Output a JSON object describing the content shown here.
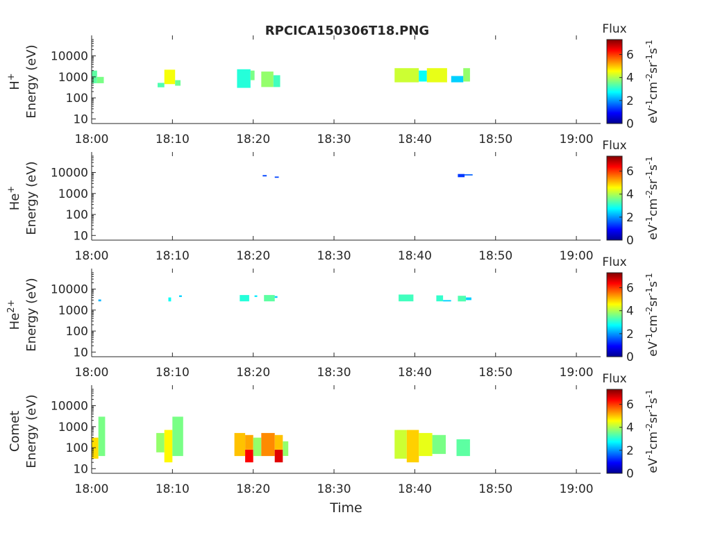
{
  "title": "RPCICA150306T18.PNG",
  "colorbar": {
    "label": "Flux",
    "ticks": [
      "0",
      "2",
      "4",
      "6"
    ],
    "range": [
      0,
      7.3
    ],
    "colormap": "jet"
  },
  "chart_data": [
    {
      "type": "heatmap",
      "name": "H+",
      "ylabel_species": "H",
      "ylabel_charge": "+",
      "ylabel_units": "Energy (eV)",
      "yscale": "log",
      "ylim": [
        6,
        60000
      ],
      "yticks": [
        "10",
        "100",
        "1000",
        "10000"
      ],
      "xlim": [
        "18:00",
        "19:03"
      ],
      "xticks": [
        "18:00",
        "18:10",
        "18:20",
        "18:30",
        "18:40",
        "18:50",
        "19:00"
      ],
      "blocks": [
        {
          "t0": "18:00:00",
          "t1": "18:00:40",
          "e0": 500,
          "e1": 2000,
          "flux": 3.4
        },
        {
          "t0": "18:00:40",
          "t1": "18:01:30",
          "e0": 500,
          "e1": 1000,
          "flux": 3.6
        },
        {
          "t0": "18:08:10",
          "t1": "18:09:00",
          "e0": 320,
          "e1": 520,
          "flux": 3.3
        },
        {
          "t0": "18:09:00",
          "t1": "18:10:20",
          "e0": 450,
          "e1": 2200,
          "flux": 4.5
        },
        {
          "t0": "18:10:20",
          "t1": "18:11:00",
          "e0": 380,
          "e1": 700,
          "flux": 3.5
        },
        {
          "t0": "18:18:00",
          "t1": "18:19:40",
          "e0": 300,
          "e1": 2300,
          "flux": 3.0
        },
        {
          "t0": "18:19:40",
          "t1": "18:20:10",
          "e0": 700,
          "e1": 2000,
          "flux": 3.6
        },
        {
          "t0": "18:21:00",
          "t1": "18:22:30",
          "e0": 330,
          "e1": 1800,
          "flux": 3.8
        },
        {
          "t0": "18:22:30",
          "t1": "18:23:20",
          "e0": 330,
          "e1": 1200,
          "flux": 3.2
        },
        {
          "t0": "18:37:30",
          "t1": "18:40:30",
          "e0": 550,
          "e1": 2600,
          "flux": 4.2
        },
        {
          "t0": "18:40:30",
          "t1": "18:41:30",
          "e0": 600,
          "e1": 2000,
          "flux": 2.8
        },
        {
          "t0": "18:41:30",
          "t1": "18:44:00",
          "e0": 550,
          "e1": 2600,
          "flux": 4.4
        },
        {
          "t0": "18:44:30",
          "t1": "18:46:00",
          "e0": 550,
          "e1": 1100,
          "flux": 2.4
        },
        {
          "t0": "18:46:00",
          "t1": "18:46:50",
          "e0": 600,
          "e1": 2600,
          "flux": 3.8
        }
      ]
    },
    {
      "type": "heatmap",
      "name": "He+",
      "ylabel_species": "He",
      "ylabel_charge": "+",
      "ylabel_units": "Energy (eV)",
      "yscale": "log",
      "ylim": [
        6,
        60000
      ],
      "yticks": [
        "10",
        "100",
        "1000",
        "10000"
      ],
      "xlim": [
        "18:00",
        "19:03"
      ],
      "xticks": [
        "18:00",
        "18:10",
        "18:20",
        "18:30",
        "18:40",
        "18:50",
        "19:00"
      ],
      "blocks": [
        {
          "t0": "18:21:10",
          "t1": "18:21:40",
          "e0": 6500,
          "e1": 7500,
          "flux": 1.4
        },
        {
          "t0": "18:22:40",
          "t1": "18:23:10",
          "e0": 5600,
          "e1": 6400,
          "flux": 1.4
        },
        {
          "t0": "18:45:20",
          "t1": "18:46:10",
          "e0": 6000,
          "e1": 8500,
          "flux": 1.3
        },
        {
          "t0": "18:46:10",
          "t1": "18:47:10",
          "e0": 7200,
          "e1": 8200,
          "flux": 1.6
        }
      ]
    },
    {
      "type": "heatmap",
      "name": "He2+",
      "ylabel_species": "He",
      "ylabel_charge": "2+",
      "ylabel_units": "Energy (eV)",
      "yscale": "log",
      "ylim": [
        6,
        60000
      ],
      "yticks": [
        "10",
        "100",
        "1000",
        "10000"
      ],
      "xlim": [
        "18:00",
        "19:03"
      ],
      "xticks": [
        "18:00",
        "18:10",
        "18:20",
        "18:30",
        "18:40",
        "18:50",
        "19:00"
      ],
      "blocks": [
        {
          "t0": "18:00:50",
          "t1": "18:01:10",
          "e0": 2600,
          "e1": 3200,
          "flux": 2.2
        },
        {
          "t0": "18:09:30",
          "t1": "18:09:50",
          "e0": 2600,
          "e1": 4000,
          "flux": 2.8
        },
        {
          "t0": "18:10:50",
          "t1": "18:11:10",
          "e0": 4200,
          "e1": 5000,
          "flux": 2.4
        },
        {
          "t0": "18:18:20",
          "t1": "18:19:30",
          "e0": 2600,
          "e1": 5200,
          "flux": 3.0
        },
        {
          "t0": "18:20:10",
          "t1": "18:20:30",
          "e0": 4200,
          "e1": 5000,
          "flux": 2.6
        },
        {
          "t0": "18:21:20",
          "t1": "18:22:40",
          "e0": 2600,
          "e1": 5200,
          "flux": 3.4
        },
        {
          "t0": "18:22:40",
          "t1": "18:23:00",
          "e0": 3800,
          "e1": 4600,
          "flux": 2.4
        },
        {
          "t0": "18:38:00",
          "t1": "18:39:50",
          "e0": 2600,
          "e1": 5500,
          "flux": 3.2
        },
        {
          "t0": "18:42:40",
          "t1": "18:43:30",
          "e0": 2600,
          "e1": 5000,
          "flux": 3.1
        },
        {
          "t0": "18:43:30",
          "t1": "18:44:30",
          "e0": 2600,
          "e1": 3000,
          "flux": 2.4
        },
        {
          "t0": "18:45:20",
          "t1": "18:46:20",
          "e0": 2600,
          "e1": 4800,
          "flux": 3.3
        },
        {
          "t0": "18:46:20",
          "t1": "18:47:00",
          "e0": 3000,
          "e1": 4000,
          "flux": 2.4
        }
      ]
    },
    {
      "type": "heatmap",
      "name": "Comet",
      "ylabel_species": "Comet",
      "ylabel_charge": "",
      "ylabel_units": "Energy (eV)",
      "yscale": "log",
      "ylim": [
        6,
        60000
      ],
      "yticks": [
        "10",
        "100",
        "1000",
        "10000"
      ],
      "xlim": [
        "18:00",
        "19:03"
      ],
      "xticks": [
        "18:00",
        "18:10",
        "18:20",
        "18:30",
        "18:40",
        "18:50",
        "19:00"
      ],
      "xlabel": "Time",
      "blocks": [
        {
          "t0": "18:00:00",
          "t1": "18:00:50",
          "e0": 30,
          "e1": 300,
          "flux": 4.8
        },
        {
          "t0": "18:00:50",
          "t1": "18:01:40",
          "e0": 40,
          "e1": 3000,
          "flux": 3.6
        },
        {
          "t0": "18:08:00",
          "t1": "18:09:00",
          "e0": 60,
          "e1": 500,
          "flux": 3.8
        },
        {
          "t0": "18:09:00",
          "t1": "18:10:00",
          "e0": 20,
          "e1": 700,
          "flux": 4.6
        },
        {
          "t0": "18:10:00",
          "t1": "18:11:20",
          "e0": 40,
          "e1": 3000,
          "flux": 3.6
        },
        {
          "t0": "18:17:40",
          "t1": "18:19:00",
          "e0": 40,
          "e1": 500,
          "flux": 5.0
        },
        {
          "t0": "18:19:00",
          "t1": "18:20:00",
          "e0": 20,
          "e1": 80,
          "flux": 6.4
        },
        {
          "t0": "18:19:00",
          "t1": "18:20:00",
          "e0": 80,
          "e1": 400,
          "flux": 5.2
        },
        {
          "t0": "18:20:00",
          "t1": "18:21:00",
          "e0": 40,
          "e1": 300,
          "flux": 3.8
        },
        {
          "t0": "18:21:00",
          "t1": "18:22:40",
          "e0": 40,
          "e1": 500,
          "flux": 5.4
        },
        {
          "t0": "18:22:40",
          "t1": "18:23:40",
          "e0": 20,
          "e1": 80,
          "flux": 6.6
        },
        {
          "t0": "18:22:40",
          "t1": "18:23:40",
          "e0": 80,
          "e1": 400,
          "flux": 5.0
        },
        {
          "t0": "18:23:40",
          "t1": "18:24:20",
          "e0": 40,
          "e1": 200,
          "flux": 3.8
        },
        {
          "t0": "18:37:30",
          "t1": "18:39:00",
          "e0": 30,
          "e1": 700,
          "flux": 4.2
        },
        {
          "t0": "18:39:00",
          "t1": "18:40:30",
          "e0": 20,
          "e1": 700,
          "flux": 4.9
        },
        {
          "t0": "18:40:30",
          "t1": "18:42:10",
          "e0": 40,
          "e1": 500,
          "flux": 4.4
        },
        {
          "t0": "18:42:10",
          "t1": "18:43:50",
          "e0": 50,
          "e1": 400,
          "flux": 3.6
        },
        {
          "t0": "18:45:10",
          "t1": "18:46:50",
          "e0": 40,
          "e1": 250,
          "flux": 3.4
        }
      ]
    }
  ]
}
